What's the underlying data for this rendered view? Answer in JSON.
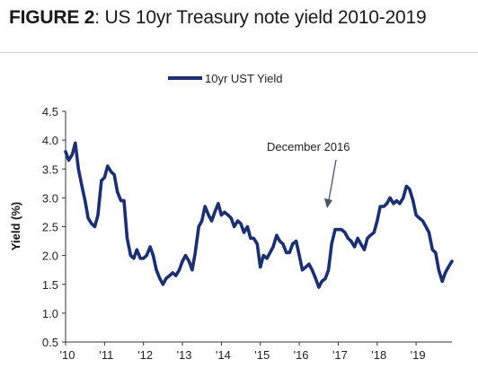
{
  "figure": {
    "label": "FIGURE 2",
    "title": ": US 10yr Treasury note yield 2010-2019"
  },
  "chart_data": {
    "type": "line",
    "title": "US 10yr Treasury note yield 2010-2019",
    "xlabel": "",
    "ylabel": "Yield (%)",
    "ylim": [
      0.5,
      4.5
    ],
    "xlim": [
      2010,
      2019.92
    ],
    "yticks": [
      "0.5",
      "1.0",
      "1.5",
      "2.0",
      "2.5",
      "3.0",
      "3.5",
      "4.0",
      "4.5"
    ],
    "xticks": [
      {
        "x": 2010,
        "label": "'10"
      },
      {
        "x": 2011,
        "label": "'11"
      },
      {
        "x": 2012,
        "label": "'12"
      },
      {
        "x": 2013,
        "label": "'13"
      },
      {
        "x": 2014,
        "label": "'14"
      },
      {
        "x": 2015,
        "label": "'15"
      },
      {
        "x": 2016,
        "label": "'16"
      },
      {
        "x": 2017,
        "label": "'17"
      },
      {
        "x": 2018,
        "label": "'18"
      },
      {
        "x": 2019,
        "label": "'19"
      }
    ],
    "legend_position": "top-center",
    "color": "#1c2f6e",
    "annotation": {
      "text": "December 2016",
      "x": 2016.95,
      "y": 2.45
    },
    "series": [
      {
        "name": "10yr UST Yield",
        "x": [
          2010.0,
          2010.08,
          2010.17,
          2010.25,
          2010.33,
          2010.42,
          2010.5,
          2010.58,
          2010.67,
          2010.75,
          2010.83,
          2010.92,
          2011.0,
          2011.08,
          2011.17,
          2011.25,
          2011.33,
          2011.42,
          2011.5,
          2011.58,
          2011.67,
          2011.75,
          2011.83,
          2011.92,
          2012.0,
          2012.08,
          2012.17,
          2012.25,
          2012.33,
          2012.42,
          2012.5,
          2012.58,
          2012.67,
          2012.75,
          2012.83,
          2012.92,
          2013.0,
          2013.08,
          2013.17,
          2013.25,
          2013.33,
          2013.42,
          2013.5,
          2013.58,
          2013.67,
          2013.75,
          2013.83,
          2013.92,
          2014.0,
          2014.08,
          2014.17,
          2014.25,
          2014.33,
          2014.42,
          2014.5,
          2014.58,
          2014.67,
          2014.75,
          2014.83,
          2014.92,
          2015.0,
          2015.08,
          2015.17,
          2015.25,
          2015.33,
          2015.42,
          2015.5,
          2015.58,
          2015.67,
          2015.75,
          2015.83,
          2015.92,
          2016.0,
          2016.08,
          2016.17,
          2016.25,
          2016.33,
          2016.42,
          2016.5,
          2016.58,
          2016.67,
          2016.75,
          2016.83,
          2016.92,
          2017.0,
          2017.08,
          2017.17,
          2017.25,
          2017.33,
          2017.42,
          2017.5,
          2017.58,
          2017.67,
          2017.75,
          2017.83,
          2017.92,
          2018.0,
          2018.08,
          2018.17,
          2018.25,
          2018.33,
          2018.42,
          2018.5,
          2018.58,
          2018.67,
          2018.75,
          2018.83,
          2018.92,
          2019.0,
          2019.08,
          2019.17,
          2019.25,
          2019.33,
          2019.42,
          2019.5,
          2019.58,
          2019.67,
          2019.75,
          2019.83,
          2019.92
        ],
        "values": [
          3.8,
          3.65,
          3.75,
          3.95,
          3.5,
          3.2,
          2.95,
          2.65,
          2.55,
          2.5,
          2.7,
          3.3,
          3.35,
          3.55,
          3.45,
          3.4,
          3.1,
          2.95,
          2.95,
          2.3,
          2.0,
          1.95,
          2.1,
          1.95,
          1.95,
          2.0,
          2.15,
          2.0,
          1.75,
          1.6,
          1.5,
          1.6,
          1.65,
          1.7,
          1.65,
          1.75,
          1.9,
          2.0,
          1.9,
          1.75,
          2.05,
          2.5,
          2.6,
          2.85,
          2.7,
          2.6,
          2.75,
          2.9,
          2.7,
          2.75,
          2.7,
          2.65,
          2.5,
          2.6,
          2.55,
          2.4,
          2.5,
          2.3,
          2.3,
          2.2,
          1.8,
          2.0,
          1.95,
          2.05,
          2.15,
          2.35,
          2.25,
          2.2,
          2.05,
          2.05,
          2.2,
          2.25,
          2.0,
          1.75,
          1.8,
          1.85,
          1.75,
          1.6,
          1.45,
          1.55,
          1.6,
          1.75,
          2.2,
          2.45,
          2.45,
          2.45,
          2.4,
          2.3,
          2.25,
          2.15,
          2.3,
          2.2,
          2.1,
          2.3,
          2.35,
          2.4,
          2.6,
          2.85,
          2.85,
          2.9,
          3.0,
          2.9,
          2.95,
          2.9,
          3.0,
          3.2,
          3.15,
          2.95,
          2.7,
          2.65,
          2.6,
          2.5,
          2.4,
          2.1,
          2.05,
          1.75,
          1.55,
          1.7,
          1.8,
          1.9
        ]
      }
    ]
  }
}
